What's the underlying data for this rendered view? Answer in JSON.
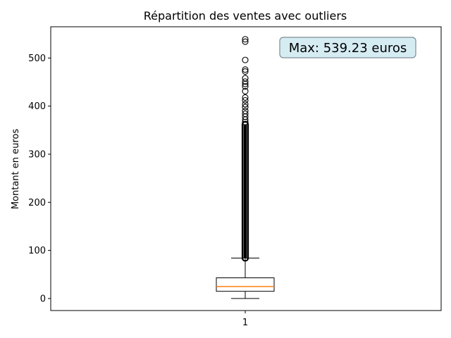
{
  "chart_data": {
    "type": "boxplot",
    "title": "Répartition des ventes avec outliers",
    "xlabel": "",
    "ylabel": "Montant en euros",
    "categories": [
      "1"
    ],
    "ylim": [
      -25,
      565
    ],
    "yticks": [
      0,
      100,
      200,
      300,
      400,
      500
    ],
    "grid": false,
    "legend": "none",
    "box": {
      "whisker_low": 0,
      "q1": 15,
      "median": 25,
      "q3": 43,
      "whisker_high": 84
    },
    "dense_outlier_range": [
      84,
      362
    ],
    "outliers": [
      367,
      372,
      378,
      384,
      390,
      398,
      404,
      412,
      418,
      431,
      441,
      446,
      451,
      458,
      472,
      476,
      496,
      534,
      539
    ],
    "annotation": "Max: 539.23 euros",
    "colors": {
      "median": "#ff7f0e",
      "annotation_fill": "#d6ecf3",
      "annotation_edge": "#7f8c94",
      "lines": "#000000"
    }
  }
}
